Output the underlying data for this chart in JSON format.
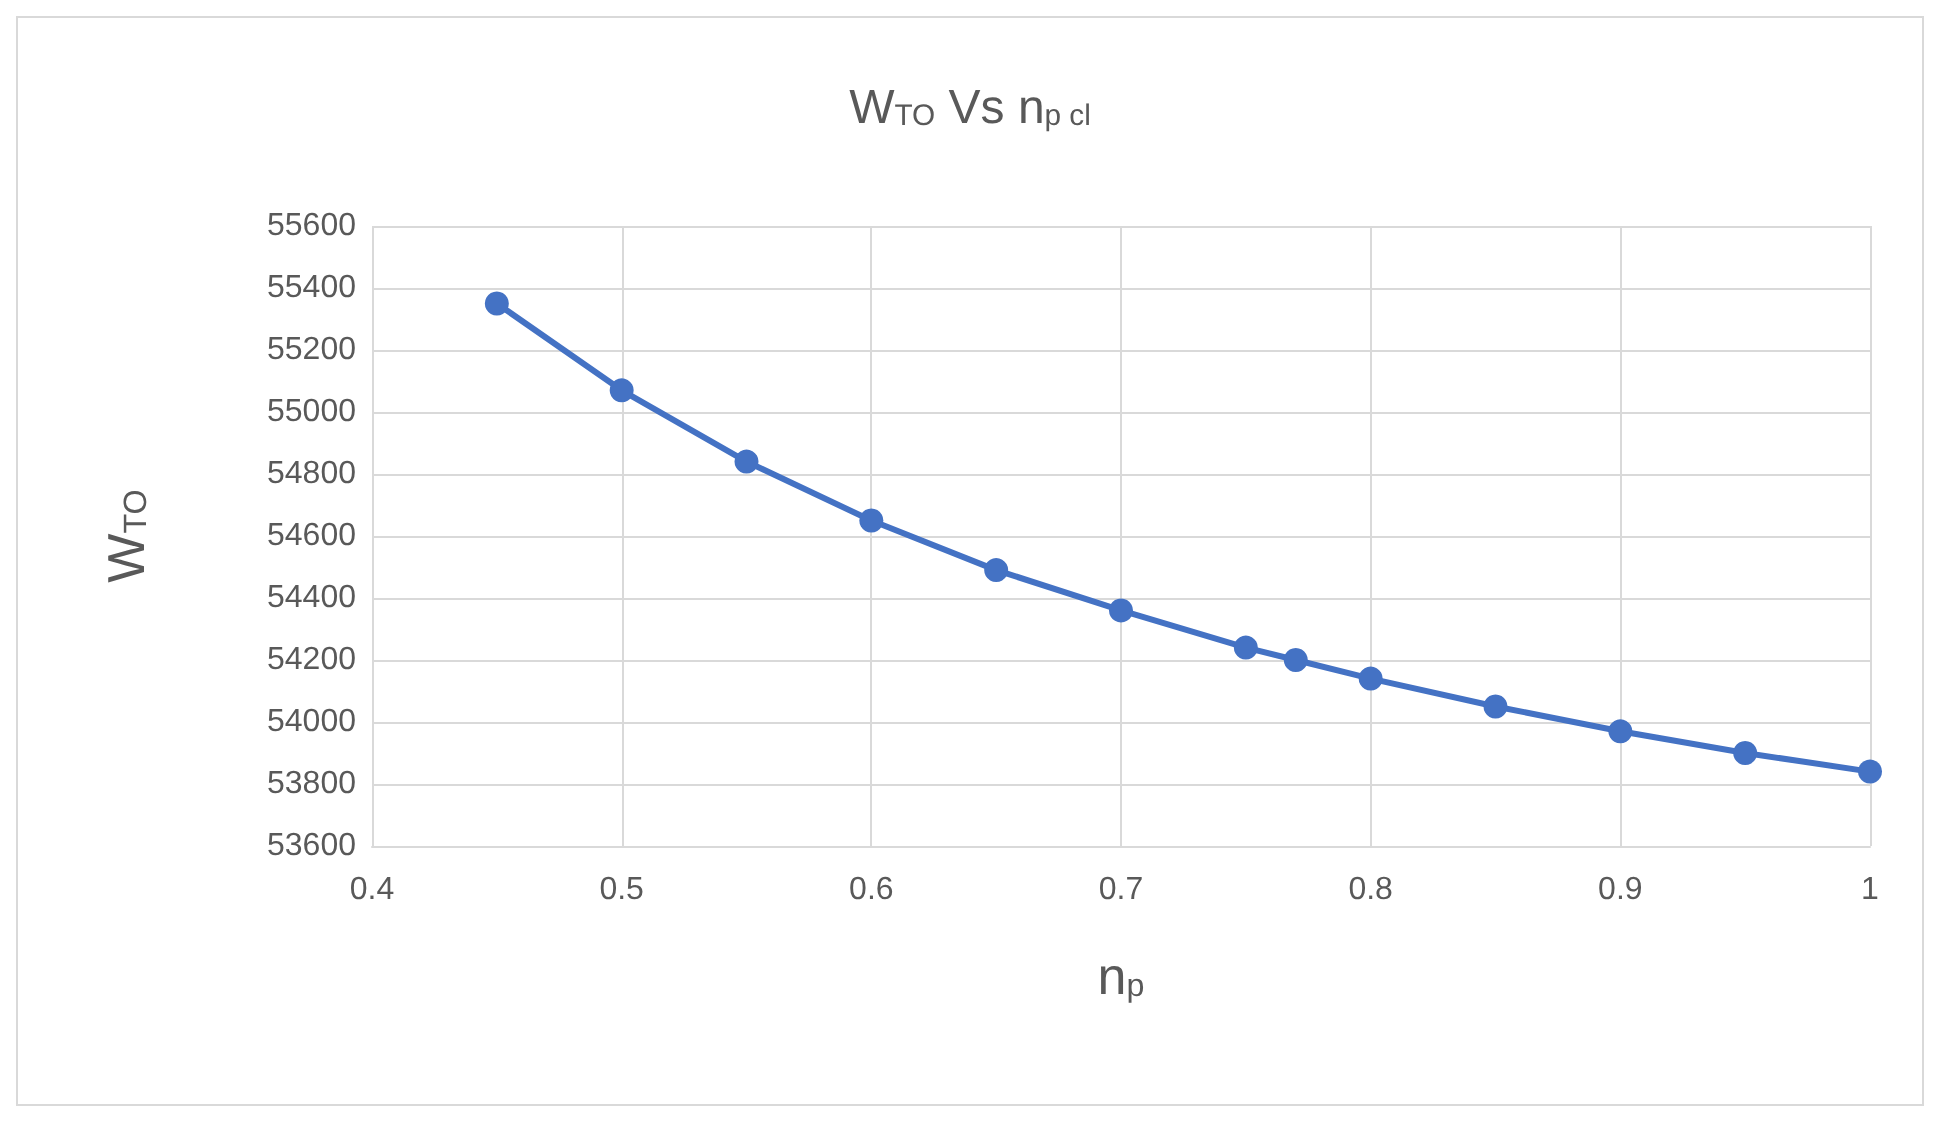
{
  "chart_data": {
    "type": "line",
    "title": "W$_{TO}$ Vs n$_{p cl}$",
    "xlabel": "n$_{p}$",
    "ylabel": "W$_{TO}$",
    "x": [
      0.45,
      0.5,
      0.55,
      0.6,
      0.65,
      0.7,
      0.75,
      0.77,
      0.8,
      0.85,
      0.9,
      0.95,
      1
    ],
    "series": [
      {
        "color": "#4472c4",
        "values": [
          55350,
          55070,
          54840,
          54650,
          54490,
          54360,
          54240,
          54200,
          54140,
          54050,
          53970,
          53900,
          53840
        ]
      }
    ],
    "xlim": [
      0.4,
      1
    ],
    "xticks": [
      0.4,
      0.5,
      0.6,
      0.7,
      0.8,
      0.9,
      1
    ],
    "ylim": [
      53600,
      55600
    ],
    "yticks": [
      53600,
      53800,
      54000,
      54200,
      54400,
      54600,
      54800,
      55000,
      55200,
      55400,
      55600
    ],
    "grid": true,
    "marker": "circle",
    "line_style": "solid"
  }
}
